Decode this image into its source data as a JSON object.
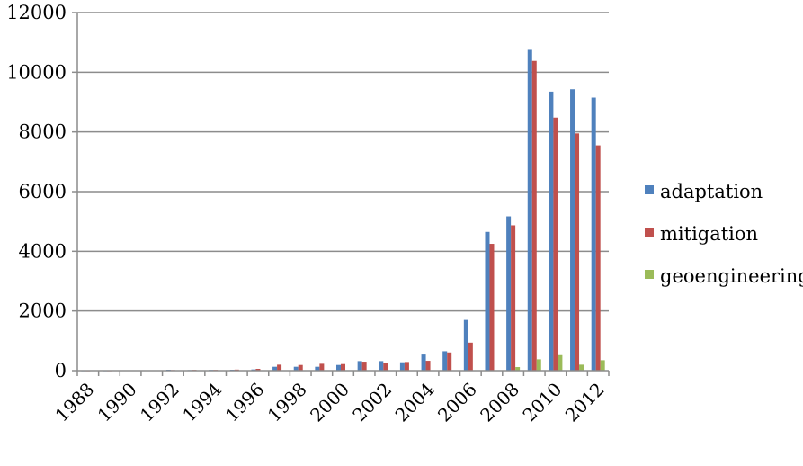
{
  "chart_data": {
    "type": "bar",
    "title": "",
    "xlabel": "",
    "ylabel": "",
    "ylim": [
      0,
      12000
    ],
    "yticks": [
      0,
      2000,
      4000,
      6000,
      8000,
      10000,
      12000
    ],
    "grid": "horizontal",
    "legend_position": "right",
    "categories": [
      "1988",
      "1989",
      "1990",
      "1991",
      "1992",
      "1993",
      "1994",
      "1995",
      "1996",
      "1997",
      "1998",
      "1999",
      "2000",
      "2001",
      "2002",
      "2003",
      "2004",
      "2005",
      "2006",
      "2007",
      "2008",
      "2009",
      "2010",
      "2011",
      "2012"
    ],
    "xtick_labels": [
      "1988",
      "1990",
      "1992",
      "1994",
      "1996",
      "1998",
      "2000",
      "2002",
      "2004",
      "2006",
      "2008",
      "2010",
      "2012"
    ],
    "series": [
      {
        "name": "adaptation",
        "color": "#4F81BD",
        "values": [
          5,
          5,
          10,
          15,
          30,
          20,
          25,
          30,
          40,
          130,
          130,
          130,
          190,
          320,
          320,
          280,
          540,
          650,
          1700,
          4650,
          5170,
          10750,
          9350,
          9430,
          9150
        ]
      },
      {
        "name": "mitigation",
        "color": "#C0504D",
        "values": [
          5,
          5,
          10,
          10,
          20,
          25,
          25,
          35,
          60,
          200,
          190,
          230,
          220,
          300,
          270,
          290,
          330,
          610,
          940,
          4250,
          4870,
          10380,
          8480,
          7950,
          7550
        ]
      },
      {
        "name": "geoengineering",
        "color": "#9BBB59",
        "values": [
          0,
          0,
          0,
          0,
          0,
          0,
          0,
          0,
          0,
          0,
          0,
          0,
          0,
          0,
          0,
          0,
          0,
          0,
          0,
          0,
          120,
          380,
          520,
          200,
          350
        ]
      }
    ]
  }
}
